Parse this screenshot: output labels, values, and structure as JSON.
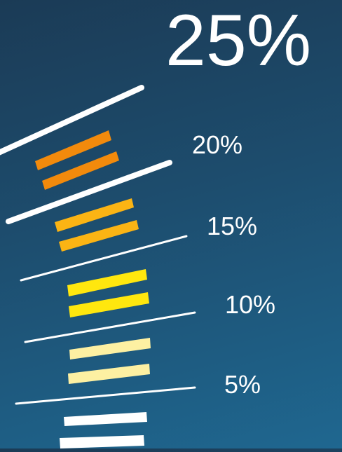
{
  "headline": "25%",
  "labels": [
    "20%",
    "15%",
    "10%",
    "5%"
  ],
  "colors": {
    "background_top": "#1b3b56",
    "background_bottom": "#1f6790",
    "dividers": "#ffffff",
    "band_20": "#f28a0c",
    "band_15": "#fbb414",
    "band_10": "#ffe70e",
    "band_5": "#fdf0a2",
    "band_0": "#ffffff"
  }
}
